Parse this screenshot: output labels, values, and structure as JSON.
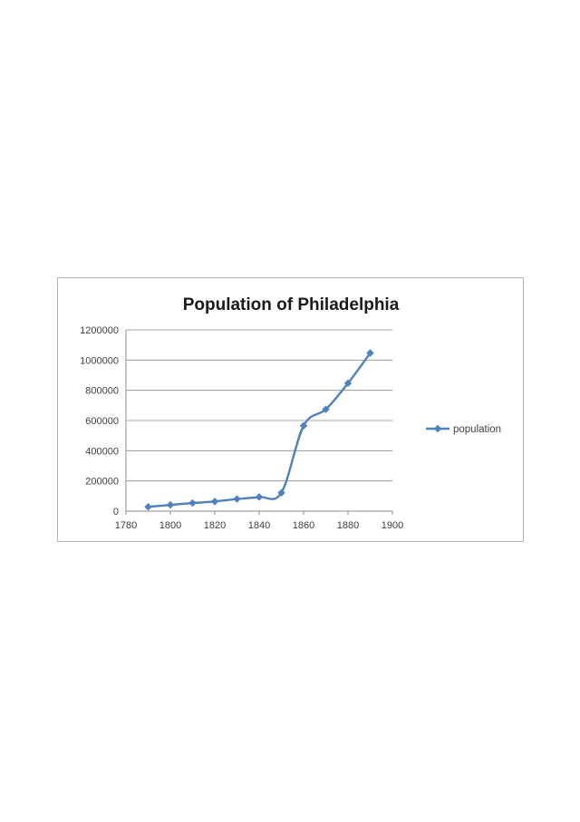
{
  "colors": {
    "series": "#4f81bd",
    "marker": "#4f81bd",
    "grid": "#8c8c8c"
  },
  "chart_data": {
    "type": "line",
    "title": "Population of Philadelphia",
    "xlabel": "",
    "ylabel": "",
    "xlim": [
      1780,
      1900
    ],
    "ylim": [
      0,
      1200000
    ],
    "x_ticks": [
      "1780",
      "1800",
      "1820",
      "1840",
      "1860",
      "1880",
      "1900"
    ],
    "y_ticks": [
      "0",
      "200000",
      "400000",
      "600000",
      "800000",
      "1000000",
      "1200000"
    ],
    "grid": true,
    "legend": "right",
    "series": [
      {
        "name": "population",
        "marker": "diamond",
        "x": [
          1790,
          1800,
          1810,
          1820,
          1830,
          1840,
          1850,
          1860,
          1870,
          1880,
          1890
        ],
        "y": [
          28500,
          41200,
          53700,
          63800,
          80500,
          93700,
          121400,
          565500,
          674000,
          847000,
          1047000
        ]
      }
    ]
  }
}
